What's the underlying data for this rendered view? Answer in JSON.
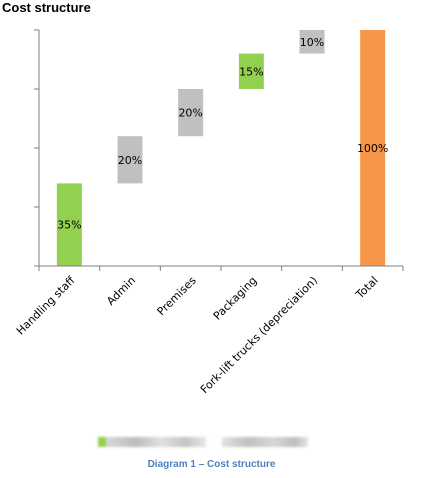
{
  "title": "Cost structure",
  "caption": "Diagram 1 – Cost structure",
  "colors": {
    "positive": "#92d050",
    "neutral": "#c0c0c0",
    "total": "#f79646",
    "axis": "#7f7f7f",
    "caption": "#4f81bd"
  },
  "chart_data": {
    "type": "bar",
    "subtype": "waterfall",
    "title": "Cost structure",
    "xlabel": "",
    "ylabel": "",
    "ylim": [
      0,
      100
    ],
    "grid": false,
    "categories": [
      "Handling staff",
      "Admin",
      "Premises",
      "Packaging",
      "Fork-lift trucks (depreciation)",
      "Total"
    ],
    "values": [
      35,
      20,
      20,
      15,
      10,
      100
    ],
    "bases": [
      0,
      35,
      55,
      75,
      90,
      0
    ],
    "labels": [
      "35%",
      "20%",
      "20%",
      "15%",
      "10%",
      "100%"
    ],
    "bar_colors": [
      "positive",
      "neutral",
      "neutral",
      "positive",
      "neutral",
      "total"
    ]
  }
}
